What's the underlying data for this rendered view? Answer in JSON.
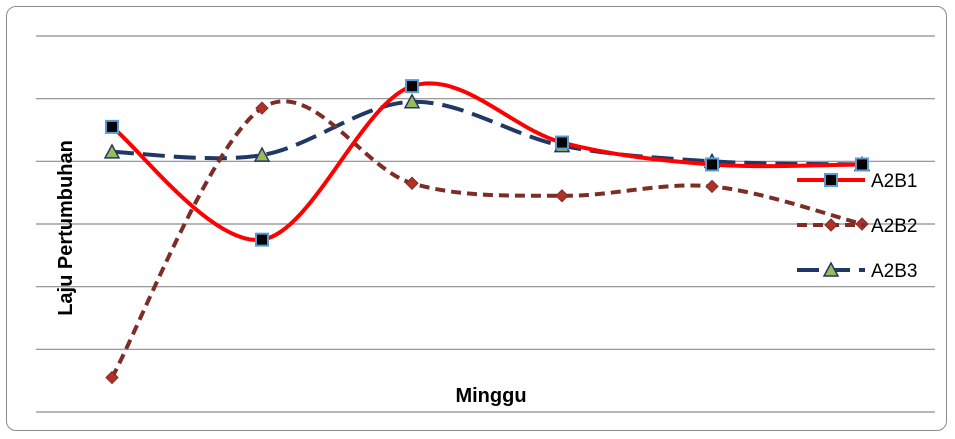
{
  "chart_data": {
    "type": "line",
    "title": "",
    "xlabel": "Minggu",
    "ylabel": "Laju Pertumbuhan",
    "grid": true,
    "legend_position": "right",
    "x": [
      1,
      2,
      3,
      4,
      5,
      6
    ],
    "ylim": [
      0,
      6
    ],
    "series": [
      {
        "name": "A2B1",
        "values": [
          4.55,
          2.75,
          5.2,
          4.3,
          3.95,
          3.95
        ],
        "color": "#ff0000",
        "dash": "solid",
        "marker": "square"
      },
      {
        "name": "A2B2",
        "values": [
          0.55,
          4.85,
          3.65,
          3.45,
          3.6,
          3.0
        ],
        "color": "#7b2d26",
        "dash": "dash",
        "marker": "diamond"
      },
      {
        "name": "A2B3",
        "values": [
          4.15,
          4.1,
          4.95,
          4.25,
          4.0,
          3.95
        ],
        "color": "#1f3864",
        "dash": "longdash",
        "marker": "triangle"
      }
    ]
  }
}
